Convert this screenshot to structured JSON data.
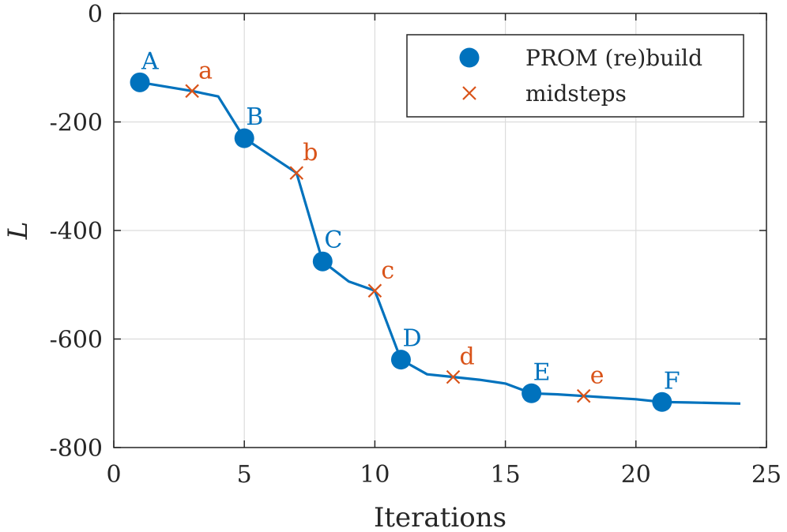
{
  "chart_data": {
    "type": "line",
    "xlabel": "Iterations",
    "ylabel": "L",
    "xlim": [
      0,
      25
    ],
    "ylim": [
      -800,
      0
    ],
    "xticks": [
      0,
      5,
      10,
      15,
      20,
      25
    ],
    "yticks": [
      0,
      -200,
      -400,
      -600,
      -800
    ],
    "grid": true,
    "legend_position": "top-right",
    "line_color": "#0072BD",
    "midstep_color": "#D95319",
    "curve": {
      "x": [
        1,
        2,
        3,
        4,
        5,
        6,
        7,
        8,
        9,
        10,
        11,
        12,
        13,
        14,
        15,
        16,
        17,
        18,
        19,
        20,
        21,
        22,
        23,
        24
      ],
      "y": [
        -127,
        -135,
        -143,
        -153,
        -230,
        -262,
        -294,
        -457,
        -494,
        -511,
        -638,
        -665,
        -670,
        -675,
        -682,
        -700,
        -702,
        -705,
        -708,
        -711,
        -716,
        -717,
        -718,
        -719
      ]
    },
    "series": [
      {
        "name": "PROM (re)build",
        "marker": "circle",
        "x": [
          1,
          5,
          8,
          11,
          16,
          21
        ],
        "y": [
          -127,
          -230,
          -457,
          -638,
          -700,
          -716
        ],
        "labels": [
          "A",
          "B",
          "C",
          "D",
          "E",
          "F"
        ]
      },
      {
        "name": "midsteps",
        "marker": "x",
        "x": [
          3,
          7,
          10,
          13,
          18
        ],
        "y": [
          -143,
          -294,
          -511,
          -670,
          -705
        ],
        "labels": [
          "a",
          "b",
          "c",
          "d",
          "e"
        ]
      }
    ]
  }
}
